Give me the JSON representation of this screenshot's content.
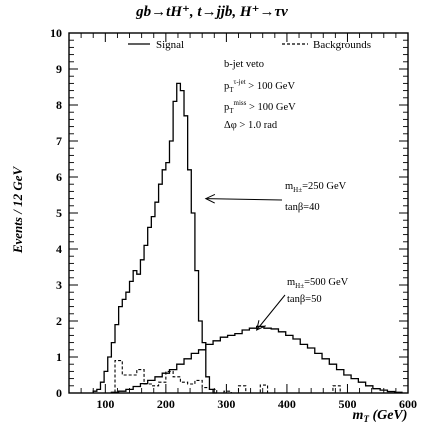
{
  "chart_data": {
    "type": "line",
    "title": "gb→tH⁺, t→jjb, H⁺→τν",
    "xlabel": "m_T (GeV)",
    "ylabel": "Events / 12 GeV",
    "xlim": [
      40,
      600
    ],
    "ylim": [
      0,
      10
    ],
    "x_ticks": [
      100,
      200,
      300,
      400,
      500,
      600
    ],
    "x_tick_labels": [
      "100",
      "200",
      "300",
      "400",
      "500",
      "600"
    ],
    "y_ticks": [
      0,
      1,
      2,
      3,
      4,
      5,
      6,
      7,
      8,
      9,
      10
    ],
    "y_tick_labels": [
      "0",
      "1",
      "2",
      "3",
      "4",
      "5",
      "6",
      "7",
      "8",
      "9",
      "10"
    ],
    "grid": false,
    "legend": [
      {
        "label": "Signal",
        "style": "solid"
      },
      {
        "label": "Backgrounds",
        "style": "dashed"
      }
    ],
    "cuts": [
      {
        "base": "b-jet veto",
        "sup": "",
        "tail": ""
      },
      {
        "base": "p",
        "sub": "T",
        "sup": "τ-jet",
        "tail": " > 100 GeV"
      },
      {
        "base": "p",
        "sub": "T",
        "sup": "miss",
        "tail": " > 100 GeV"
      },
      {
        "base": "Δφ > 1.0 rad",
        "sup": "",
        "tail": ""
      }
    ],
    "annotations": [
      {
        "mass_base": "m",
        "mass_sub": "H±",
        "mass_tail": "=250 GeV",
        "tanb": "tanβ=40",
        "arrow_to": [
          266,
          5.4
        ]
      },
      {
        "mass_base": "m",
        "mass_sub": "H±",
        "mass_tail": "=500 GeV",
        "tanb": "tanβ=50",
        "arrow_to": [
          350,
          1.75
        ]
      }
    ],
    "series": [
      {
        "style": "solid",
        "edges": [
          80,
          86,
          92,
          98,
          104,
          110,
          116,
          122,
          128,
          134,
          140,
          146,
          152,
          158,
          164,
          170,
          176,
          182,
          188,
          194,
          200,
          206,
          212,
          218,
          224,
          230,
          236,
          242,
          248,
          254,
          260,
          266,
          272,
          278,
          284
        ],
        "values": [
          0.05,
          0.1,
          0.3,
          0.6,
          1.0,
          1.4,
          1.9,
          2.4,
          2.6,
          2.8,
          3.1,
          3.4,
          3.3,
          3.7,
          4.1,
          4.6,
          4.9,
          5.3,
          5.8,
          6.2,
          6.4,
          7.0,
          8.1,
          8.6,
          8.4,
          7.7,
          6.2,
          5.0,
          3.4,
          2.0,
          1.4,
          0.45,
          0.1,
          0.0
        ]
      },
      {
        "style": "solid",
        "edges": [
          110,
          122,
          134,
          146,
          158,
          170,
          182,
          194,
          206,
          218,
          230,
          242,
          254,
          266,
          278,
          290,
          302,
          314,
          326,
          338,
          350,
          362,
          374,
          386,
          398,
          410,
          422,
          434,
          446,
          458,
          470,
          482,
          494,
          506,
          518,
          530,
          542,
          554,
          566,
          578,
          590
        ],
        "values": [
          0.02,
          0.05,
          0.1,
          0.18,
          0.26,
          0.35,
          0.45,
          0.55,
          0.65,
          0.8,
          0.95,
          1.1,
          1.2,
          1.35,
          1.45,
          1.55,
          1.6,
          1.65,
          1.75,
          1.8,
          1.85,
          1.8,
          1.78,
          1.7,
          1.6,
          1.5,
          1.35,
          1.25,
          1.1,
          0.95,
          0.8,
          0.65,
          0.5,
          0.4,
          0.3,
          0.2,
          0.12,
          0.08,
          0.04,
          0.02
        ]
      },
      {
        "style": "dashed",
        "edges": [
          92,
          104,
          116,
          128,
          140,
          152,
          164,
          176,
          188,
          200,
          212,
          224,
          236,
          248,
          260,
          272,
          284,
          296,
          308,
          320,
          332,
          344,
          356,
          368,
          380,
          392,
          404,
          416,
          428,
          440,
          452,
          464,
          476,
          488,
          500,
          512,
          524,
          536,
          548,
          560,
          572,
          584
        ],
        "values": [
          0.0,
          0.0,
          0.9,
          0.5,
          0.5,
          0.65,
          0.25,
          0.2,
          0.3,
          0.6,
          0.45,
          0.3,
          0.25,
          0.35,
          0.15,
          0.1,
          0.0,
          0.05,
          0.0,
          0.2,
          0.0,
          0.0,
          0.22,
          0.0,
          0.0,
          0.0,
          0.0,
          0.0,
          0.0,
          0.0,
          0.0,
          0.0,
          0.2,
          0.0,
          0.0,
          0.0,
          0.0,
          0.0,
          0.0,
          0.0,
          0.0,
          0.0
        ]
      }
    ]
  }
}
